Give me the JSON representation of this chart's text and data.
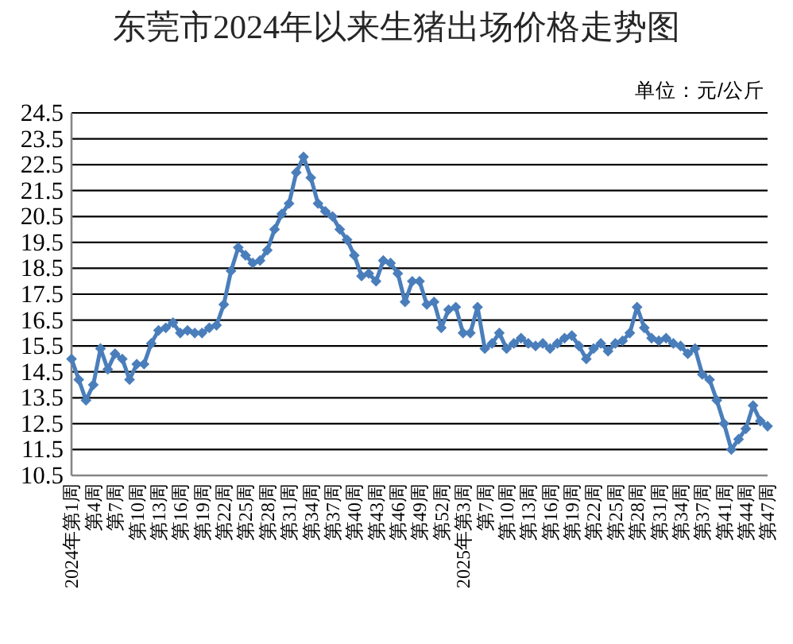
{
  "chart_data": {
    "type": "line",
    "title": "东莞市2024年以来生猪出场价格走势图",
    "annotations": [
      "单位：元/公斤"
    ],
    "categories": [
      "2024年第1周",
      null,
      null,
      "第4周",
      null,
      null,
      "第7周",
      null,
      null,
      "第10周",
      null,
      null,
      "第13周",
      null,
      null,
      "第16周",
      null,
      null,
      "第19周",
      null,
      null,
      "第22周",
      null,
      null,
      "第25周",
      null,
      null,
      "第28周",
      null,
      null,
      "第31周",
      null,
      null,
      "第34周",
      null,
      null,
      "第37周",
      null,
      null,
      "第40周",
      null,
      null,
      "第43周",
      null,
      null,
      "第46周",
      null,
      null,
      "第49周",
      null,
      null,
      "第52周",
      null,
      null,
      "2025年第3周",
      null,
      null,
      "第7周",
      null,
      null,
      "第10周",
      null,
      null,
      "第13周",
      null,
      null,
      "第16周",
      null,
      null,
      "第19周",
      null,
      null,
      "第22周",
      null,
      null,
      "第25周",
      null,
      null,
      "第28周",
      null,
      null,
      "第31周",
      null,
      null,
      "第34周",
      null,
      null,
      "第37周",
      null,
      null,
      "第41周",
      null,
      null,
      "第44周",
      null,
      null,
      "第47周"
    ],
    "series": [
      {
        "color": "#4a7ebb",
        "values": [
          15.0,
          14.2,
          13.4,
          14.0,
          15.4,
          14.6,
          15.2,
          15.0,
          14.2,
          14.8,
          14.8,
          15.6,
          16.1,
          16.2,
          16.4,
          16.0,
          16.1,
          16.0,
          16.0,
          16.2,
          16.3,
          17.1,
          18.4,
          19.3,
          19.0,
          18.7,
          18.8,
          19.2,
          20.0,
          20.6,
          21.0,
          22.2,
          22.8,
          22.0,
          21.0,
          20.7,
          20.5,
          20.0,
          19.6,
          19.0,
          18.2,
          18.3,
          18.0,
          18.8,
          18.7,
          18.3,
          17.2,
          18.0,
          18.0,
          17.1,
          17.2,
          16.2,
          16.9,
          17.0,
          16.0,
          16.0,
          17.0,
          15.4,
          15.6,
          16.0,
          15.4,
          15.6,
          15.8,
          15.6,
          15.5,
          15.6,
          15.4,
          15.6,
          15.8,
          15.9,
          15.5,
          15.0,
          15.4,
          15.6,
          15.3,
          15.6,
          15.7,
          16.0,
          17.0,
          16.2,
          15.8,
          15.7,
          15.8,
          15.6,
          15.5,
          15.2,
          15.4,
          14.4,
          14.2,
          13.4,
          12.5,
          11.5,
          11.9,
          12.3,
          13.2,
          12.6,
          12.4
        ]
      }
    ],
    "ylim": [
      10.5,
      24.5
    ],
    "yticks": [
      10.5,
      11.5,
      12.5,
      13.5,
      14.5,
      15.5,
      16.5,
      17.5,
      18.5,
      19.5,
      20.5,
      21.5,
      22.5,
      23.5,
      24.5
    ],
    "grid": "y",
    "marker": "diamond",
    "line_style": "solid"
  }
}
